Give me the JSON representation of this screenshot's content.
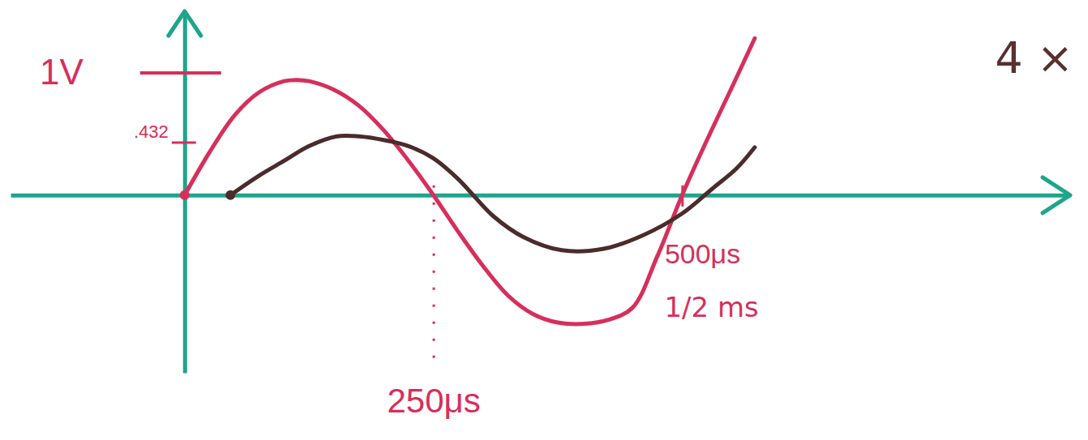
{
  "chart_data": {
    "type": "line",
    "series": [
      {
        "color": "#d62f5b",
        "x": [
          0,
          25,
          50,
          75,
          100,
          113,
          125,
          150,
          175,
          200,
          225,
          250,
          275,
          300,
          325,
          350,
          375,
          403,
          425,
          450,
          475,
          500,
          525,
          550,
          573
        ],
        "values": [
          0,
          0.35,
          0.65,
          0.84,
          0.93,
          0.94,
          0.93,
          0.86,
          0.73,
          0.53,
          0.28,
          0,
          -0.3,
          -0.58,
          -0.82,
          -0.97,
          -1.04,
          -1.05,
          -1.02,
          -0.92,
          -0.5,
          0,
          0.45,
          0.88,
          1.28
        ]
      },
      {
        "color": "#4b2b2b",
        "x": [
          46,
          75,
          100,
          125,
          153,
          175,
          200,
          225,
          250,
          275,
          290,
          310,
          340,
          379,
          420,
          460,
          500,
          530,
          555,
          573
        ],
        "values": [
          0,
          0.16,
          0.28,
          0.4,
          0.48,
          0.48,
          0.45,
          0.4,
          0.3,
          0.13,
          0,
          -0.17,
          -0.34,
          -0.45,
          -0.44,
          -0.33,
          -0.15,
          0.05,
          0.22,
          0.39
        ]
      }
    ],
    "xlim": [
      -175,
      890
    ],
    "ylim": [
      -1.45,
      1.5
    ],
    "xticks": [
      {
        "value": 250,
        "label": "250μs"
      },
      {
        "value": 500,
        "label": "500μs"
      }
    ],
    "yticks": [
      {
        "value": 1,
        "label": "1V"
      },
      {
        "value": 0.432,
        "label": ".432"
      }
    ],
    "annotations": [
      {
        "text": "1/2 ms",
        "x": 500
      },
      {
        "text": "4 ×"
      }
    ],
    "grid": false
  }
}
